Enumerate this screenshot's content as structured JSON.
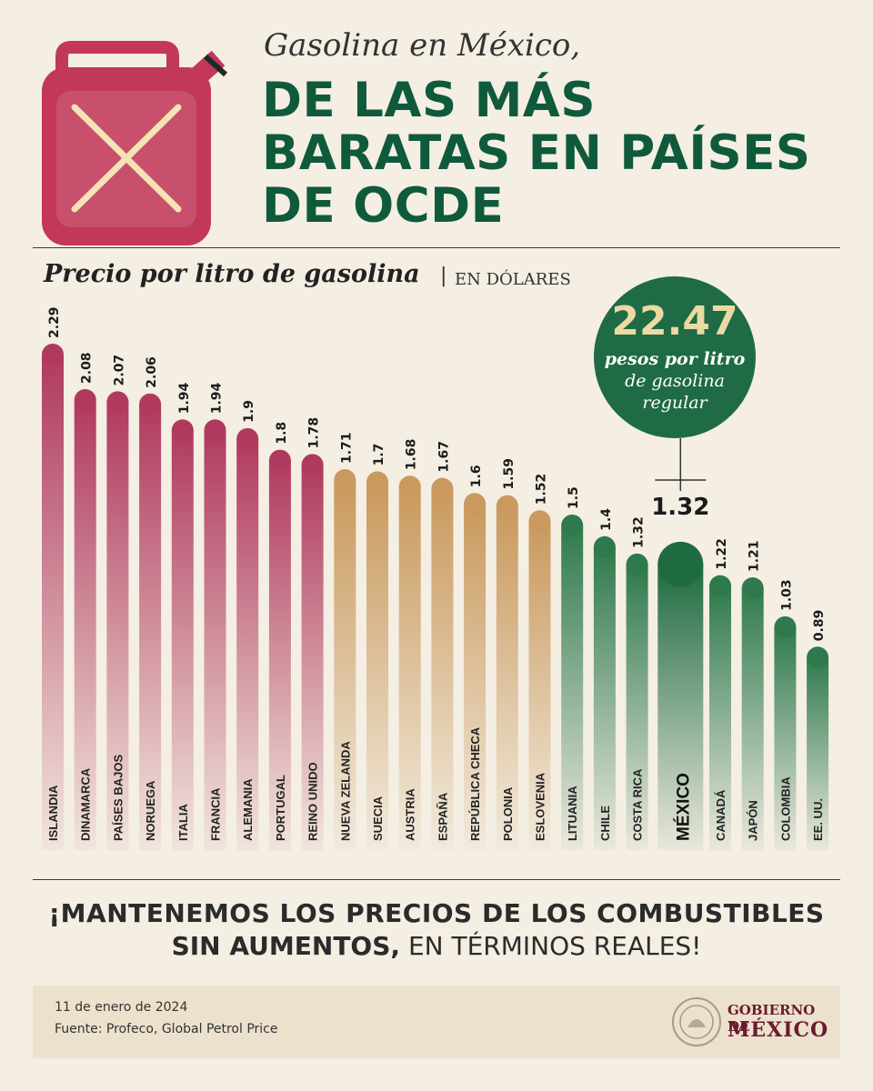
{
  "header": {
    "subtitle": "Gasolina en México,",
    "title_lines": [
      "DE LAS MÁS",
      "BARATAS EN PAÍSES",
      "DE OCDE"
    ]
  },
  "chart_header": {
    "title": "Precio por litro de gasolina",
    "separator": "|",
    "unit": "EN DÓLARES"
  },
  "callout": {
    "value": "22.47",
    "line1": "pesos por litro",
    "line2": "de gasolina",
    "line3": "regular"
  },
  "colors": {
    "high": "#b03a5e",
    "mid": "#c9995d",
    "low": "#2f7a4d",
    "mexico": "#1f6b40",
    "title_green": "#0f5a3c",
    "brand_maroon": "#6a1b30"
  },
  "chart_data": {
    "type": "bar",
    "title": "Precio por litro de gasolina",
    "ylabel": "EN DÓLARES",
    "ylim": [
      0,
      2.29
    ],
    "categories": [
      "ISLANDIA",
      "DINAMARCA",
      "PAÍSES BAJOS",
      "NORUEGA",
      "ITALIA",
      "FRANCIA",
      "ALEMANIA",
      "PORTUGAL",
      "REINO UNIDO",
      "NUEVA ZELANDA",
      "SUECIA",
      "AUSTRIA",
      "ESPAÑA",
      "REPÚBLICA CHECA",
      "POLONIA",
      "ESLOVENIA",
      "LITUANIA",
      "CHILE",
      "COSTA RICA",
      "MÉXICO",
      "CANADÁ",
      "JAPÓN",
      "COLOMBIA",
      "EE. UU."
    ],
    "values": [
      2.29,
      2.08,
      2.07,
      2.06,
      1.94,
      1.94,
      1.9,
      1.8,
      1.78,
      1.71,
      1.7,
      1.68,
      1.67,
      1.6,
      1.59,
      1.52,
      1.5,
      1.4,
      1.32,
      1.32,
      1.22,
      1.21,
      1.03,
      0.89
    ],
    "value_labels": [
      "2.29",
      "2.08",
      "2.07",
      "2.06",
      "1.94",
      "1.94",
      "1.9",
      "1.8",
      "1.78",
      "1.71",
      "1.7",
      "1.68",
      "1.67",
      "1.6",
      "1.59",
      "1.52",
      "1.5",
      "1.4",
      "1.32",
      "1.32",
      "1.22",
      "1.21",
      "1.03",
      "0.89"
    ],
    "color_groups": [
      "high",
      "high",
      "high",
      "high",
      "high",
      "high",
      "high",
      "high",
      "high",
      "mid",
      "mid",
      "mid",
      "mid",
      "mid",
      "mid",
      "mid",
      "low",
      "low",
      "low",
      "mexico",
      "low",
      "low",
      "low",
      "low"
    ],
    "highlight": "MÉXICO",
    "grid": false,
    "legend": "none"
  },
  "slogan": {
    "line1": "¡MANTENEMOS LOS PRECIOS DE LOS COMBUSTIBLES",
    "line2_bold": "SIN AUMENTOS,",
    "line2_rest": " EN TÉRMINOS REALES!"
  },
  "footer": {
    "date": "11 de enero de 2024",
    "source": "Fuente: Profeco, Global Petrol Price",
    "gov_line1": "GOBIERNO DE",
    "gov_line2": "MÉXICO"
  }
}
